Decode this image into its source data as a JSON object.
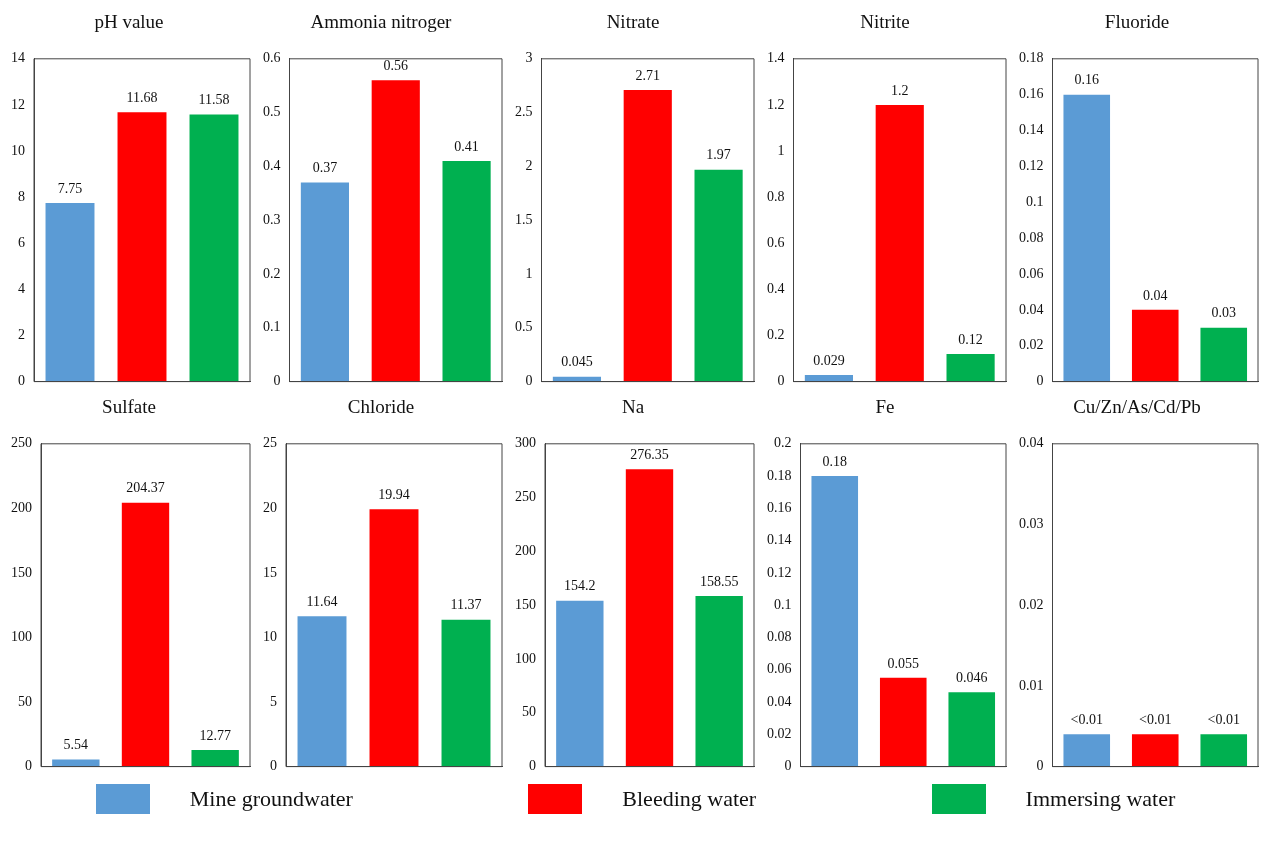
{
  "chart_data": [
    {
      "type": "bar",
      "title": "pH value",
      "categories": [
        null,
        null,
        null
      ],
      "legend": "bottom",
      "data_labels": true,
      "grid": false,
      "ylim": [
        0,
        14
      ],
      "yticks": [
        0,
        2,
        4,
        6,
        8,
        10,
        12,
        14
      ],
      "series": [
        {
          "name": "Mine groundwater",
          "color": "#5b9bd5",
          "values": [
            7.75,
            null,
            null
          ]
        },
        {
          "name": "Bleeding water",
          "color": "#ff0000",
          "values": [
            null,
            11.68,
            null
          ]
        },
        {
          "name": "Immersing water",
          "color": "#00b050",
          "values": [
            null,
            null,
            11.58
          ]
        }
      ]
    },
    {
      "type": "bar",
      "title": "Ammonia nitroger",
      "categories": [
        null,
        null,
        null
      ],
      "data_labels": true,
      "grid": false,
      "ylim": [
        0,
        0.6
      ],
      "yticks": [
        0,
        0.1,
        0.2,
        0.3,
        0.4,
        0.5,
        0.6
      ],
      "series": [
        {
          "color": "#5b9bd5",
          "values": [
            0.37,
            null,
            null
          ]
        },
        {
          "color": "#ff0000",
          "values": [
            null,
            0.56,
            null
          ]
        },
        {
          "color": "#00b050",
          "values": [
            null,
            null,
            0.41
          ]
        }
      ]
    },
    {
      "type": "bar",
      "title": "Nitrate",
      "categories": [
        null,
        null,
        null
      ],
      "data_labels": true,
      "grid": false,
      "ylim": [
        0,
        3
      ],
      "yticks": [
        0,
        0.5,
        1,
        1.5,
        2,
        2.5,
        3
      ],
      "series": [
        {
          "color": "#5b9bd5",
          "values": [
            0.045,
            null,
            null
          ]
        },
        {
          "color": "#ff0000",
          "values": [
            null,
            2.71,
            null
          ]
        },
        {
          "color": "#00b050",
          "values": [
            null,
            null,
            1.97
          ]
        }
      ]
    },
    {
      "type": "bar",
      "title": "Nitrite",
      "categories": [
        null,
        null,
        null
      ],
      "data_labels": true,
      "grid": false,
      "ylim": [
        0,
        1.4
      ],
      "yticks": [
        0,
        0.2,
        0.4,
        0.6,
        0.8,
        1,
        1.2,
        1.4
      ],
      "series": [
        {
          "color": "#5b9bd5",
          "values": [
            0.029,
            null,
            null
          ]
        },
        {
          "color": "#ff0000",
          "values": [
            null,
            1.2,
            null
          ]
        },
        {
          "color": "#00b050",
          "values": [
            null,
            null,
            0.12
          ]
        }
      ]
    },
    {
      "type": "bar",
      "title": "Fluoride",
      "categories": [
        null,
        null,
        null
      ],
      "data_labels": true,
      "grid": false,
      "ylim": [
        0,
        0.18
      ],
      "yticks": [
        0,
        0.02,
        0.04,
        0.06,
        0.08,
        0.1,
        0.12,
        0.14,
        0.16,
        0.18
      ],
      "series": [
        {
          "color": "#5b9bd5",
          "values": [
            0.16,
            null,
            null
          ]
        },
        {
          "color": "#ff0000",
          "values": [
            null,
            0.04,
            null
          ]
        },
        {
          "color": "#00b050",
          "values": [
            null,
            null,
            0.03
          ]
        }
      ]
    },
    {
      "type": "bar",
      "title": "Sulfate",
      "categories": [
        null,
        null,
        null
      ],
      "data_labels": true,
      "grid": false,
      "ylim": [
        0,
        250
      ],
      "yticks": [
        0,
        50,
        100,
        150,
        200,
        250
      ],
      "series": [
        {
          "color": "#5b9bd5",
          "values": [
            5.54,
            null,
            null
          ]
        },
        {
          "color": "#ff0000",
          "values": [
            null,
            204.37,
            null
          ]
        },
        {
          "color": "#00b050",
          "values": [
            null,
            null,
            12.77
          ]
        }
      ]
    },
    {
      "type": "bar",
      "title": "Chloride",
      "categories": [
        null,
        null,
        null
      ],
      "data_labels": true,
      "grid": false,
      "ylim": [
        0,
        25
      ],
      "yticks": [
        0,
        5,
        10,
        15,
        20,
        25
      ],
      "series": [
        {
          "color": "#5b9bd5",
          "values": [
            11.64,
            null,
            null
          ]
        },
        {
          "color": "#ff0000",
          "values": [
            null,
            19.94,
            null
          ]
        },
        {
          "color": "#00b050",
          "values": [
            null,
            null,
            11.37
          ]
        }
      ]
    },
    {
      "type": "bar",
      "title": "Na",
      "categories": [
        null,
        null,
        null
      ],
      "data_labels": true,
      "grid": false,
      "ylim": [
        0,
        300
      ],
      "yticks": [
        0,
        50,
        100,
        150,
        200,
        250,
        300
      ],
      "series": [
        {
          "color": "#5b9bd5",
          "values": [
            154.2,
            null,
            null
          ]
        },
        {
          "color": "#ff0000",
          "values": [
            null,
            276.35,
            null
          ]
        },
        {
          "color": "#00b050",
          "values": [
            null,
            null,
            158.55
          ]
        }
      ]
    },
    {
      "type": "bar",
      "title": "Fe",
      "categories": [
        null,
        null,
        null
      ],
      "data_labels": true,
      "grid": false,
      "ylim": [
        0,
        0.2
      ],
      "yticks": [
        0,
        0.02,
        0.04,
        0.06,
        0.08,
        0.1,
        0.12,
        0.14,
        0.16,
        0.18,
        0.2
      ],
      "series": [
        {
          "color": "#5b9bd5",
          "values": [
            0.18,
            null,
            null
          ]
        },
        {
          "color": "#ff0000",
          "values": [
            null,
            0.055,
            null
          ]
        },
        {
          "color": "#00b050",
          "values": [
            null,
            null,
            0.046
          ]
        }
      ]
    },
    {
      "type": "bar",
      "title": "Cu/Zn/As/Cd/Pb",
      "categories": [
        null,
        null,
        null
      ],
      "grid": false,
      "ylim": [
        0,
        0.04
      ],
      "yticks": [
        0,
        0.01,
        0.02,
        0.03,
        0.04
      ],
      "series": [
        {
          "color": "#5b9bd5",
          "values": [
            0.004,
            null,
            null
          ],
          "value_labels": [
            "<0.01",
            null,
            null
          ]
        },
        {
          "color": "#ff0000",
          "values": [
            null,
            0.004,
            null
          ],
          "value_labels": [
            null,
            "<0.01",
            null
          ]
        },
        {
          "color": "#00b050",
          "values": [
            null,
            null,
            0.004
          ],
          "value_labels": [
            null,
            null,
            "<0.01"
          ]
        }
      ]
    }
  ]
}
